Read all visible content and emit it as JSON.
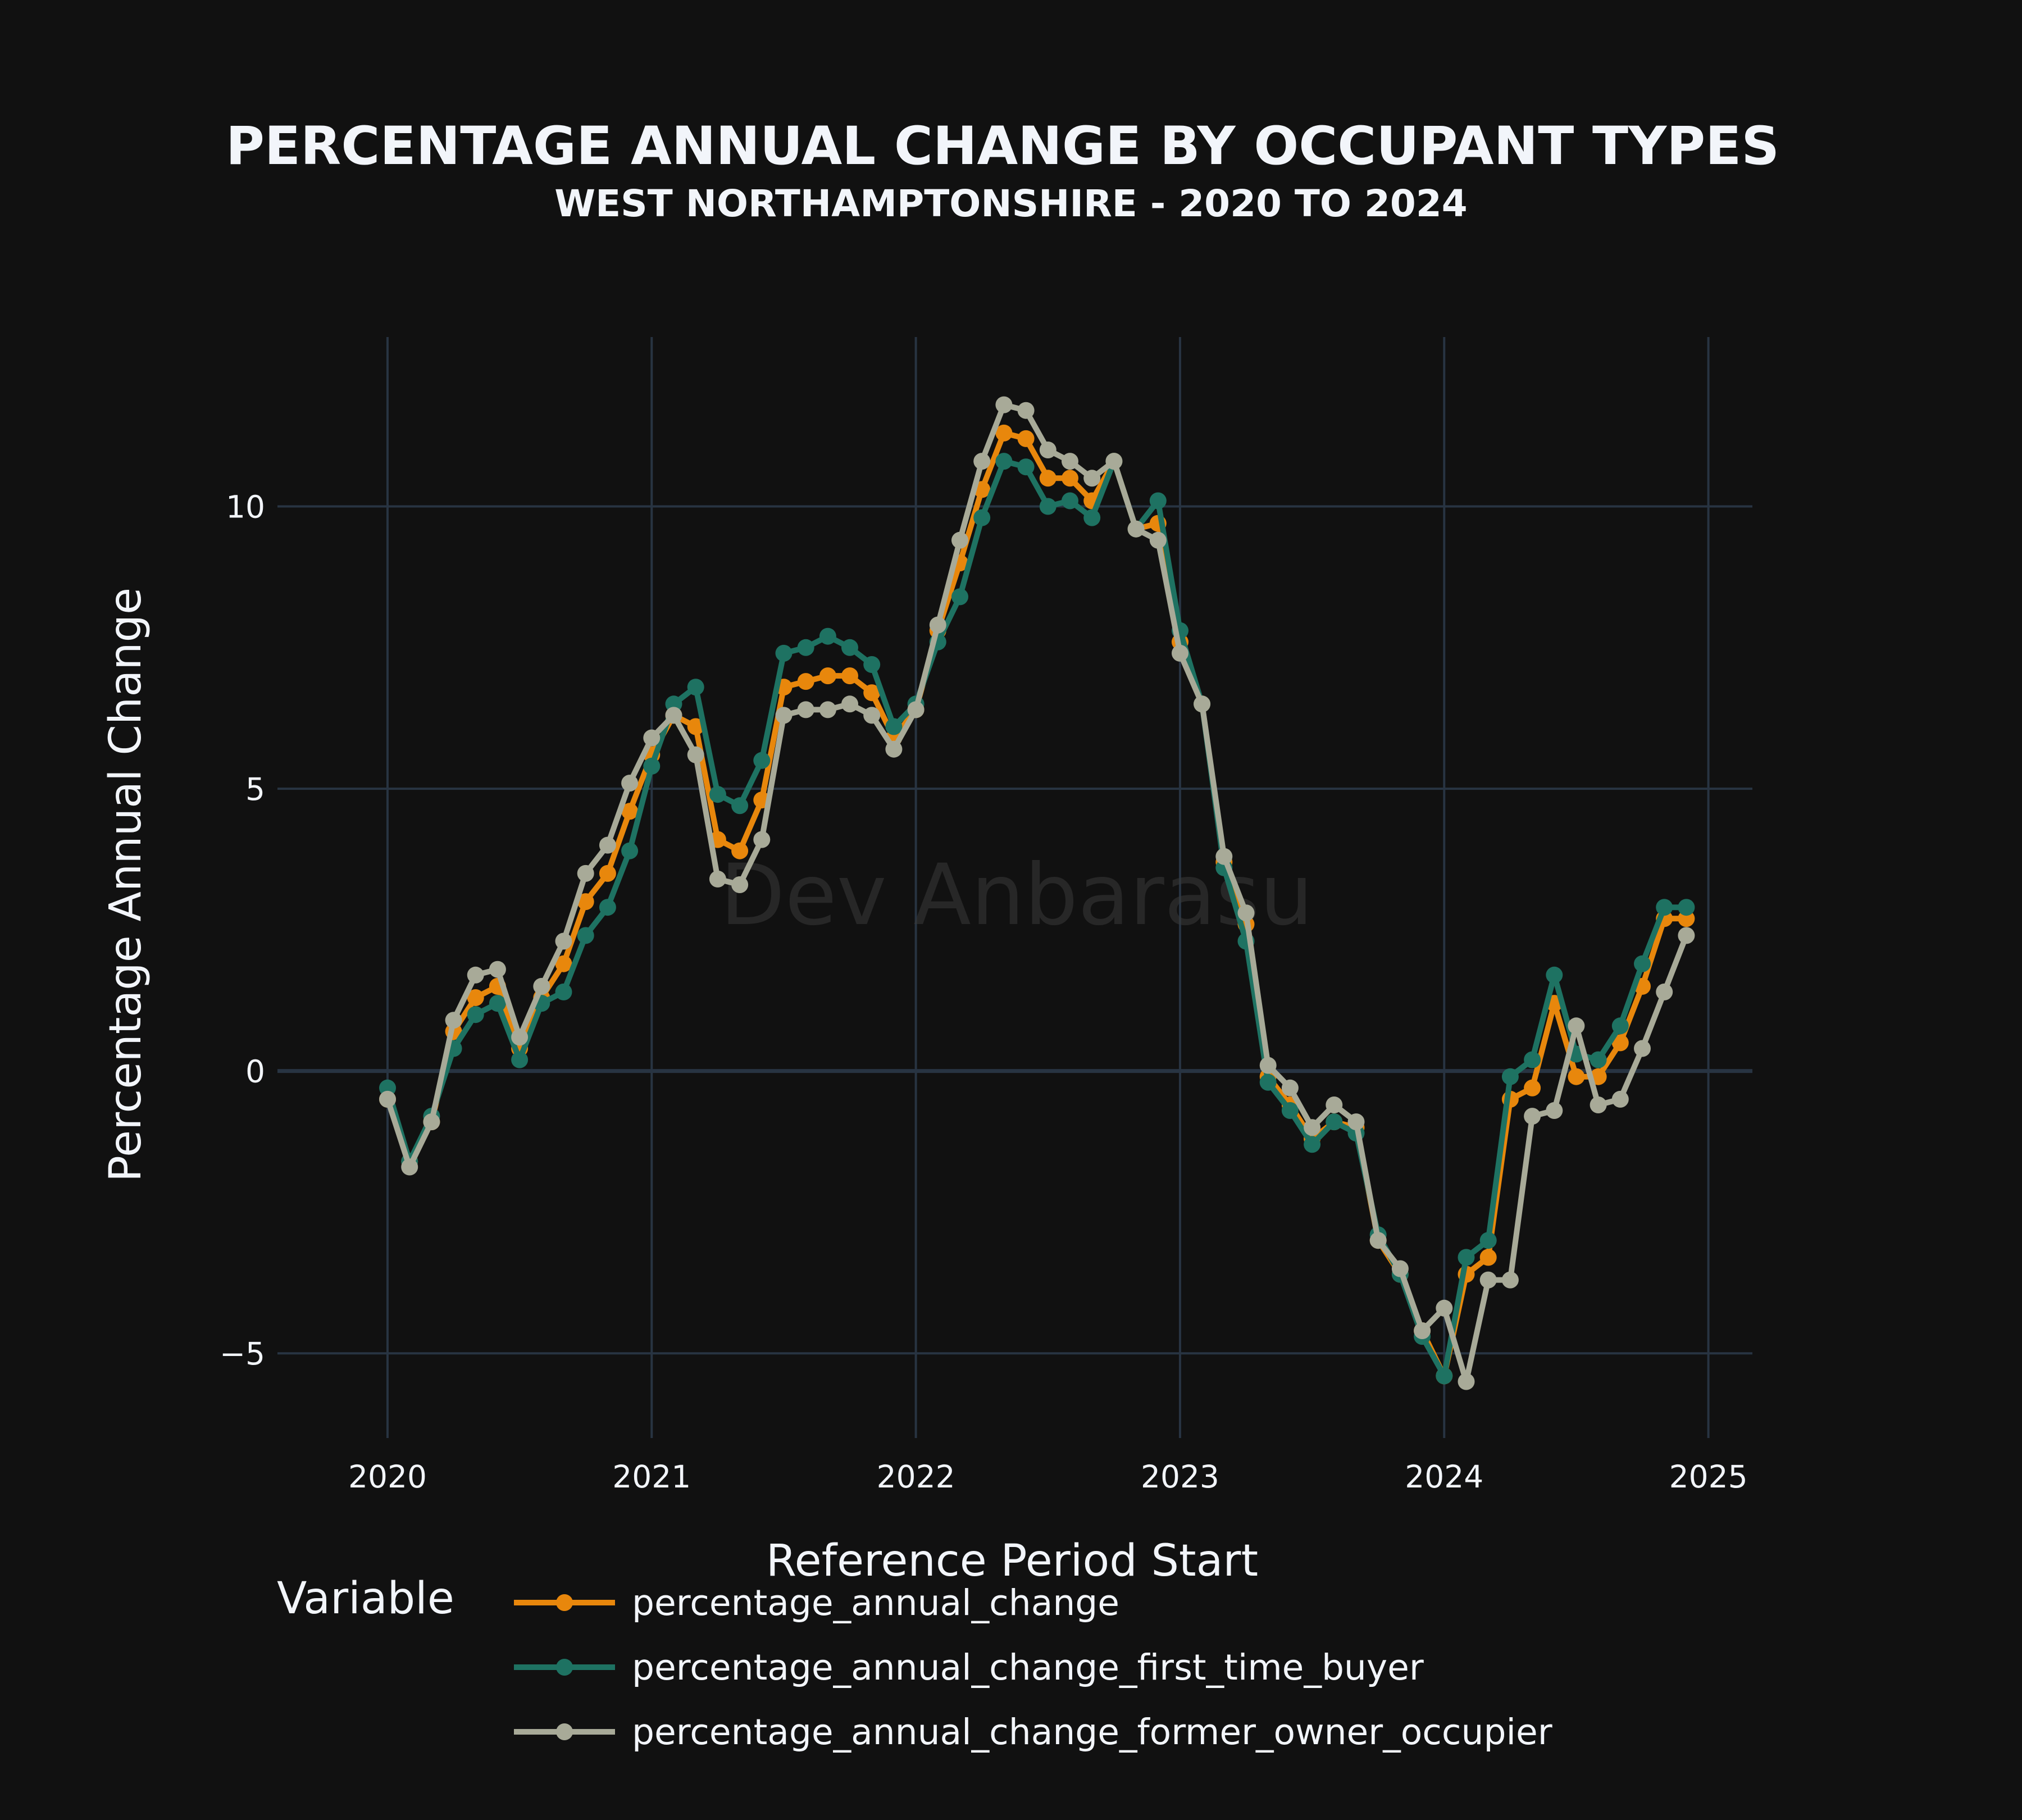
{
  "chart_data": {
    "type": "line",
    "title": "PERCENTAGE ANNUAL CHANGE BY OCCUPANT TYPES",
    "subtitle": "WEST NORTHAMPTONSHIRE - 2020 TO 2024",
    "xlabel": "Reference Period Start",
    "ylabel": "Percentage Annual Change",
    "watermark": "Dev Anbarasu",
    "legend_title": "Variable",
    "legend_position": "bottom",
    "grid": true,
    "xlim": [
      "2019-08-01",
      "2025-03-01"
    ],
    "ylim": [
      -6.5,
      13
    ],
    "x_ticks": [
      "2020",
      "2021",
      "2022",
      "2023",
      "2024",
      "2025"
    ],
    "y_ticks": [
      -5,
      0,
      5,
      10
    ],
    "y_tick_labels": [
      "−5",
      "0",
      "5",
      "10"
    ],
    "x": [
      "2020-01",
      "2020-02",
      "2020-03",
      "2020-04",
      "2020-05",
      "2020-06",
      "2020-07",
      "2020-08",
      "2020-09",
      "2020-10",
      "2020-11",
      "2020-12",
      "2021-01",
      "2021-02",
      "2021-03",
      "2021-04",
      "2021-05",
      "2021-06",
      "2021-07",
      "2021-08",
      "2021-09",
      "2021-10",
      "2021-11",
      "2021-12",
      "2022-01",
      "2022-02",
      "2022-03",
      "2022-04",
      "2022-05",
      "2022-06",
      "2022-07",
      "2022-08",
      "2022-09",
      "2022-10",
      "2022-11",
      "2022-12",
      "2023-01",
      "2023-02",
      "2023-03",
      "2023-04",
      "2023-05",
      "2023-06",
      "2023-07",
      "2023-08",
      "2023-09",
      "2023-10",
      "2023-11",
      "2023-12",
      "2024-01",
      "2024-02",
      "2024-03",
      "2024-04",
      "2024-05",
      "2024-06",
      "2024-07",
      "2024-08",
      "2024-09",
      "2024-10",
      "2024-11",
      "2024-12"
    ],
    "series": [
      {
        "name": "percentage_annual_change",
        "color": "#e8870c",
        "values": [
          -0.5,
          -1.6,
          -0.9,
          0.7,
          1.3,
          1.5,
          0.4,
          1.3,
          1.9,
          3.0,
          3.5,
          4.6,
          5.6,
          6.3,
          6.1,
          4.1,
          3.9,
          4.8,
          6.8,
          6.9,
          7.0,
          7.0,
          6.7,
          5.9,
          6.4,
          7.8,
          9.0,
          10.3,
          11.3,
          11.2,
          10.5,
          10.5,
          10.1,
          10.8,
          9.6,
          9.7,
          7.6,
          6.5,
          3.7,
          2.6,
          -0.1,
          -0.6,
          -1.2,
          -0.9,
          -1.0,
          -3.0,
          -3.6,
          -4.6,
          -5.4,
          -3.6,
          -3.3,
          -0.5,
          -0.3,
          1.2,
          -0.1,
          -0.1,
          0.5,
          1.5,
          2.7,
          2.7
        ]
      },
      {
        "name": "percentage_annual_change_first_time_buyer",
        "color": "#1e7262",
        "values": [
          -0.3,
          -1.6,
          -0.8,
          0.4,
          1.0,
          1.2,
          0.2,
          1.2,
          1.4,
          2.4,
          2.9,
          3.9,
          5.4,
          6.5,
          6.8,
          4.9,
          4.7,
          5.5,
          7.4,
          7.5,
          7.7,
          7.5,
          7.2,
          6.1,
          6.5,
          7.6,
          8.4,
          9.8,
          10.8,
          10.7,
          10.0,
          10.1,
          9.8,
          10.8,
          9.6,
          10.1,
          7.8,
          6.5,
          3.6,
          2.3,
          -0.2,
          -0.7,
          -1.3,
          -0.9,
          -1.1,
          -2.9,
          -3.6,
          -4.7,
          -5.4,
          -3.3,
          -3.0,
          -0.1,
          0.2,
          1.7,
          0.3,
          0.2,
          0.8,
          1.9,
          2.9,
          2.9
        ]
      },
      {
        "name": "percentage_annual_change_former_owner_occupier",
        "color": "#a8aa98",
        "values": [
          -0.5,
          -1.7,
          -0.9,
          0.9,
          1.7,
          1.8,
          0.6,
          1.5,
          2.3,
          3.5,
          4.0,
          5.1,
          5.9,
          6.3,
          5.6,
          3.4,
          3.3,
          4.1,
          6.3,
          6.4,
          6.4,
          6.5,
          6.3,
          5.7,
          6.4,
          7.9,
          9.4,
          10.8,
          11.8,
          11.7,
          11.0,
          10.8,
          10.5,
          10.8,
          9.6,
          9.4,
          7.4,
          6.5,
          3.8,
          2.8,
          0.1,
          -0.3,
          -1.0,
          -0.6,
          -0.9,
          -3.0,
          -3.5,
          -4.6,
          -4.2,
          -5.5,
          -3.7,
          -3.7,
          -0.8,
          -0.7,
          0.8,
          -0.6,
          -0.5,
          0.4,
          1.4,
          2.4
        ]
      }
    ]
  }
}
